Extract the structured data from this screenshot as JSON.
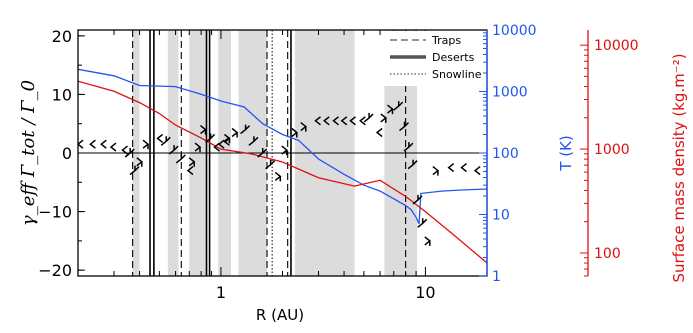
{
  "chart_data": {
    "type": "line",
    "xlabel": "R (AU)",
    "ylabel_left": "γ_eff Γ_tot / Γ_0",
    "ylabel_right1": "T (K)",
    "ylabel_right2": "Surface mass density (kg.m⁻²)",
    "x_scale": "log",
    "xlim": [
      0.2,
      20
    ],
    "x_tick_labels": [
      "1",
      "10"
    ],
    "ylim_left": [
      -21,
      21
    ],
    "y_left_ticks": [
      "20",
      "10",
      "0",
      "−10",
      "−20"
    ],
    "temperature_axis": {
      "scale": "log",
      "range": [
        1,
        10000
      ],
      "tick_labels": [
        "10000",
        "1000",
        "100",
        "10",
        "1"
      ],
      "color": "#2255ee"
    },
    "density_axis": {
      "scale": "log",
      "range": [
        60,
        14000
      ],
      "tick_labels": [
        "10000",
        "1000",
        "100"
      ],
      "color": "#dd1111"
    },
    "legend": {
      "position": "top-right",
      "entries": [
        {
          "label": "Traps",
          "style": "dashed"
        },
        {
          "label": "Deserts",
          "style": "thick"
        },
        {
          "label": "Snowline",
          "style": "dotted"
        }
      ]
    },
    "deserts_shaded": [
      [
        0.37,
        0.4
      ],
      [
        0.55,
        0.62
      ],
      [
        0.7,
        0.86
      ],
      [
        0.97,
        1.12
      ],
      [
        1.22,
        1.68
      ],
      [
        2.3,
        4.5
      ],
      [
        6.3,
        9.1
      ]
    ],
    "trap_lines": [
      0.37,
      0.64,
      1.68,
      2.12,
      8.0
    ],
    "desert_lines": [
      0.45,
      0.47,
      0.85,
      0.88,
      2.2
    ],
    "snowline_lines": [
      1.78
    ],
    "zero_line": 0,
    "series": [
      {
        "name": "T",
        "axis": "temperature",
        "color": "#2255ee",
        "x": [
          0.2,
          0.3,
          0.4,
          0.6,
          0.8,
          1.0,
          1.3,
          1.6,
          2.0,
          2.4,
          3.0,
          4.0,
          5.0,
          6.0,
          7.0,
          8.0,
          8.5,
          9.0,
          9.3,
          9.5,
          12,
          15,
          20
        ],
        "y": [
          2300,
          1800,
          1250,
          1200,
          900,
          700,
          560,
          300,
          200,
          160,
          80,
          45,
          30,
          24,
          18,
          14,
          12,
          9,
          7,
          22,
          24,
          25,
          26
        ]
      },
      {
        "name": "Surface mass density",
        "axis": "density",
        "color": "#dd1111",
        "x": [
          0.2,
          0.3,
          0.4,
          0.5,
          0.6,
          0.8,
          1.0,
          1.4,
          2.0,
          3.0,
          4.5,
          6.0,
          8.0,
          10,
          14,
          20
        ],
        "y": [
          4500,
          3600,
          2800,
          2200,
          1700,
          1280,
          1000,
          900,
          750,
          530,
          440,
          500,
          350,
          250,
          145,
          80
        ]
      },
      {
        "name": "torque",
        "axis": "left",
        "marker": "arrow",
        "color": "#000000",
        "x": [
          0.2,
          0.23,
          0.26,
          0.29,
          0.33,
          0.36,
          0.38,
          0.41,
          0.44,
          0.49,
          0.54,
          0.59,
          0.64,
          0.69,
          0.74,
          0.79,
          0.84,
          0.89,
          0.93,
          0.98,
          1.04,
          1.1,
          1.2,
          1.32,
          1.45,
          1.6,
          1.75,
          1.95,
          2.1,
          2.35,
          2.6,
          2.9,
          3.2,
          3.55,
          3.9,
          4.3,
          4.8,
          5.3,
          5.8,
          6.4,
          6.9,
          7.4,
          7.9,
          8.3,
          8.7,
          9.2,
          9.7,
          10.5,
          11.5,
          13,
          15,
          17.5,
          20
        ],
        "y": [
          1.5,
          1.5,
          1.5,
          1.0,
          0.5,
          0.0,
          -3.0,
          -1.5,
          1.5,
          2.5,
          2.0,
          0.5,
          -1.0,
          -3.0,
          -1.5,
          1.0,
          4.0,
          2.5,
          1.0,
          1.5,
          2.0,
          2.5,
          3.5,
          4.0,
          2.0,
          0.0,
          -2.0,
          -4.0,
          0.5,
          3.5,
          4.5,
          5.5,
          5.5,
          5.5,
          5.5,
          5.5,
          5.5,
          6.0,
          3.5,
          6.0,
          7.5,
          8.0,
          4.5,
          1.0,
          -2.0,
          -8.0,
          -12.0,
          -15.0,
          -3.0,
          -2.5,
          -2.5,
          -3.0,
          -3.0
        ]
      }
    ]
  }
}
